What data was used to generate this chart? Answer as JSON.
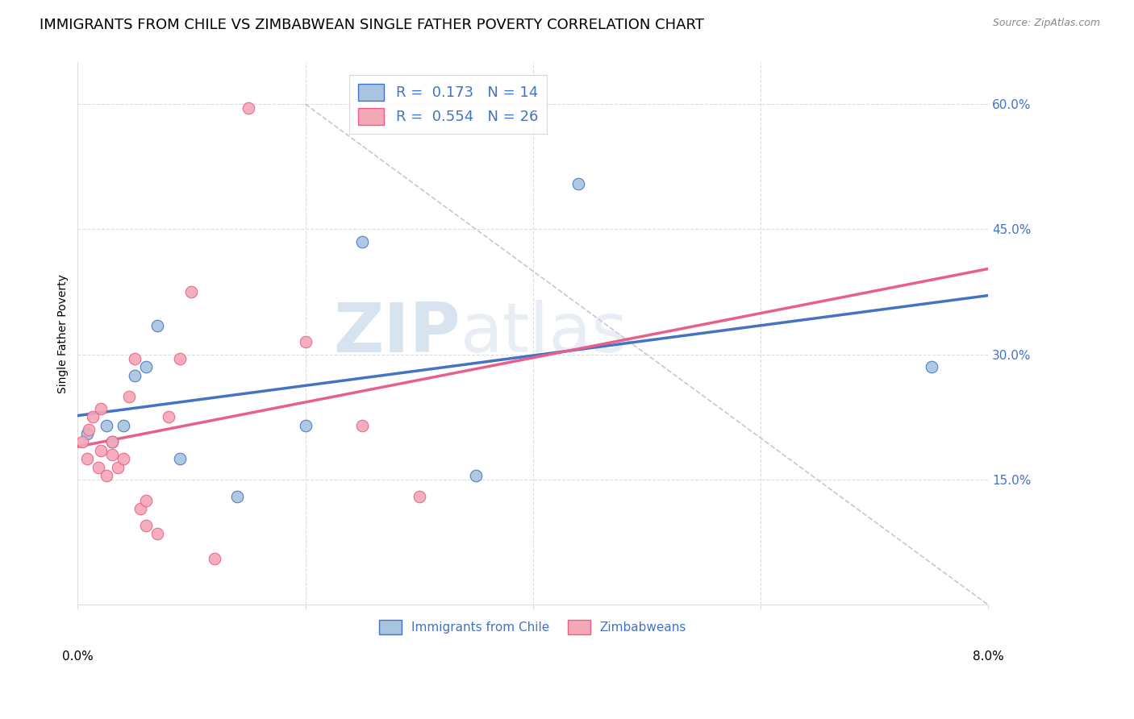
{
  "title": "IMMIGRANTS FROM CHILE VS ZIMBABWEAN SINGLE FATHER POVERTY CORRELATION CHART",
  "source": "Source: ZipAtlas.com",
  "ylabel": "Single Father Poverty",
  "ytick_labels": [
    "15.0%",
    "30.0%",
    "45.0%",
    "60.0%"
  ],
  "ytick_values": [
    0.15,
    0.3,
    0.45,
    0.6
  ],
  "xlim": [
    0.0,
    0.08
  ],
  "ylim": [
    0.0,
    0.65
  ],
  "legend_R_chile": "0.173",
  "legend_N_chile": "14",
  "legend_R_zimb": "0.554",
  "legend_N_zimb": "26",
  "legend_label_chile": "Immigrants from Chile",
  "legend_label_zimb": "Zimbabweans",
  "color_chile": "#a8c4e0",
  "color_zimb": "#f4a7b5",
  "line_color_chile": "#4472c4",
  "line_color_zimb": "#e8608a",
  "diagonal_color": "#c8c8c8",
  "watermark_zip": "ZIP",
  "watermark_atlas": "atlas",
  "chile_x": [
    0.0008,
    0.0025,
    0.003,
    0.004,
    0.005,
    0.006,
    0.007,
    0.009,
    0.014,
    0.02,
    0.025,
    0.035,
    0.044,
    0.075
  ],
  "chile_y": [
    0.205,
    0.215,
    0.195,
    0.215,
    0.275,
    0.285,
    0.335,
    0.175,
    0.13,
    0.215,
    0.435,
    0.155,
    0.505,
    0.285
  ],
  "zimb_x": [
    0.0004,
    0.0008,
    0.001,
    0.0013,
    0.0018,
    0.002,
    0.002,
    0.0025,
    0.003,
    0.003,
    0.0035,
    0.004,
    0.0045,
    0.005,
    0.0055,
    0.006,
    0.006,
    0.007,
    0.008,
    0.009,
    0.01,
    0.012,
    0.015,
    0.02,
    0.025,
    0.03
  ],
  "zimb_y": [
    0.195,
    0.175,
    0.21,
    0.225,
    0.165,
    0.185,
    0.235,
    0.155,
    0.18,
    0.195,
    0.165,
    0.175,
    0.25,
    0.295,
    0.115,
    0.125,
    0.095,
    0.085,
    0.225,
    0.295,
    0.375,
    0.055,
    0.595,
    0.315,
    0.215,
    0.13
  ],
  "grid_color": "#dddddd",
  "background_color": "#ffffff",
  "title_fontsize": 13,
  "axis_label_fontsize": 10,
  "tick_fontsize": 11,
  "legend_fontsize": 13
}
